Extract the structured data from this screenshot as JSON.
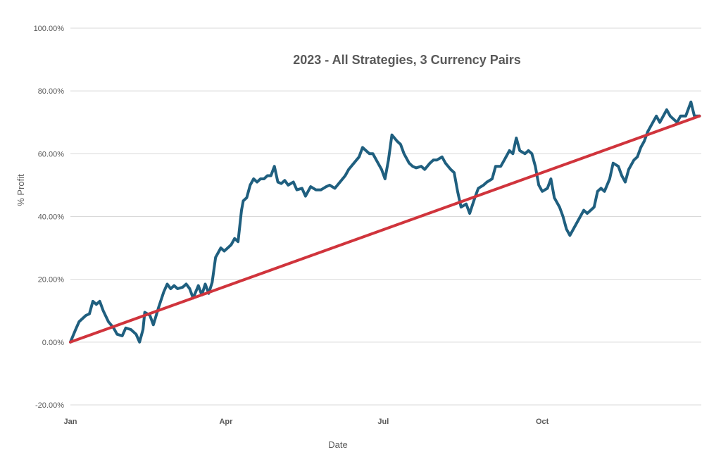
{
  "chart_data": {
    "type": "line",
    "title": "2023 - All Strategies, 3 Currency Pairs",
    "xlabel": "Date",
    "ylabel": "% Profit",
    "ylim": [
      -0.2,
      1.0
    ],
    "xlim": [
      "2023-01-01",
      "2024-01-01"
    ],
    "grid": "horizontal",
    "legend": "none",
    "y_ticks": [
      "-20.00%",
      "0.00%",
      "20.00%",
      "40.00%",
      "60.00%",
      "80.00%",
      "100.00%"
    ],
    "x_ticks": [
      {
        "label": "Jan",
        "date": "2023-01-01"
      },
      {
        "label": "Apr",
        "date": "2023-04-01"
      },
      {
        "label": "Jul",
        "date": "2023-07-01"
      },
      {
        "label": "Oct",
        "date": "2023-10-01"
      }
    ],
    "series": [
      {
        "color": "#1f5f7f",
        "points": [
          [
            "2023-01-01",
            0.0
          ],
          [
            "2023-01-04",
            0.04
          ],
          [
            "2023-01-06",
            0.065
          ],
          [
            "2023-01-10",
            0.085
          ],
          [
            "2023-01-12",
            0.09
          ],
          [
            "2023-01-14",
            0.13
          ],
          [
            "2023-01-16",
            0.12
          ],
          [
            "2023-01-18",
            0.13
          ],
          [
            "2023-01-20",
            0.1
          ],
          [
            "2023-01-23",
            0.065
          ],
          [
            "2023-01-26",
            0.045
          ],
          [
            "2023-01-28",
            0.025
          ],
          [
            "2023-01-31",
            0.02
          ],
          [
            "2023-02-02",
            0.045
          ],
          [
            "2023-02-05",
            0.04
          ],
          [
            "2023-02-08",
            0.025
          ],
          [
            "2023-02-10",
            0.0
          ],
          [
            "2023-02-12",
            0.04
          ],
          [
            "2023-02-13",
            0.095
          ],
          [
            "2023-02-16",
            0.085
          ],
          [
            "2023-02-18",
            0.055
          ],
          [
            "2023-02-21",
            0.11
          ],
          [
            "2023-02-24",
            0.16
          ],
          [
            "2023-02-26",
            0.185
          ],
          [
            "2023-02-28",
            0.17
          ],
          [
            "2023-03-02",
            0.18
          ],
          [
            "2023-03-04",
            0.17
          ],
          [
            "2023-03-07",
            0.175
          ],
          [
            "2023-03-09",
            0.185
          ],
          [
            "2023-03-11",
            0.17
          ],
          [
            "2023-03-13",
            0.14
          ],
          [
            "2023-03-16",
            0.18
          ],
          [
            "2023-03-18",
            0.15
          ],
          [
            "2023-03-20",
            0.185
          ],
          [
            "2023-03-22",
            0.155
          ],
          [
            "2023-03-24",
            0.19
          ],
          [
            "2023-03-26",
            0.27
          ],
          [
            "2023-03-29",
            0.3
          ],
          [
            "2023-03-31",
            0.29
          ],
          [
            "2023-04-02",
            0.3
          ],
          [
            "2023-04-04",
            0.31
          ],
          [
            "2023-04-06",
            0.33
          ],
          [
            "2023-04-08",
            0.32
          ],
          [
            "2023-04-10",
            0.42
          ],
          [
            "2023-04-11",
            0.45
          ],
          [
            "2023-04-13",
            0.46
          ],
          [
            "2023-04-15",
            0.5
          ],
          [
            "2023-04-17",
            0.52
          ],
          [
            "2023-04-19",
            0.51
          ],
          [
            "2023-04-21",
            0.52
          ],
          [
            "2023-04-23",
            0.52
          ],
          [
            "2023-04-25",
            0.53
          ],
          [
            "2023-04-27",
            0.53
          ],
          [
            "2023-04-29",
            0.56
          ],
          [
            "2023-05-01",
            0.51
          ],
          [
            "2023-05-03",
            0.505
          ],
          [
            "2023-05-05",
            0.515
          ],
          [
            "2023-05-07",
            0.5
          ],
          [
            "2023-05-10",
            0.51
          ],
          [
            "2023-05-12",
            0.485
          ],
          [
            "2023-05-15",
            0.49
          ],
          [
            "2023-05-17",
            0.465
          ],
          [
            "2023-05-20",
            0.495
          ],
          [
            "2023-05-23",
            0.485
          ],
          [
            "2023-05-26",
            0.485
          ],
          [
            "2023-05-29",
            0.495
          ],
          [
            "2023-05-31",
            0.5
          ],
          [
            "2023-06-03",
            0.49
          ],
          [
            "2023-06-06",
            0.51
          ],
          [
            "2023-06-09",
            0.53
          ],
          [
            "2023-06-11",
            0.55
          ],
          [
            "2023-06-14",
            0.57
          ],
          [
            "2023-06-17",
            0.59
          ],
          [
            "2023-06-19",
            0.62
          ],
          [
            "2023-06-21",
            0.61
          ],
          [
            "2023-06-23",
            0.6
          ],
          [
            "2023-06-25",
            0.6
          ],
          [
            "2023-06-27",
            0.58
          ],
          [
            "2023-06-30",
            0.55
          ],
          [
            "2023-07-02",
            0.52
          ],
          [
            "2023-07-04",
            0.58
          ],
          [
            "2023-07-06",
            0.66
          ],
          [
            "2023-07-09",
            0.64
          ],
          [
            "2023-07-11",
            0.63
          ],
          [
            "2023-07-13",
            0.6
          ],
          [
            "2023-07-16",
            0.57
          ],
          [
            "2023-07-18",
            0.56
          ],
          [
            "2023-07-20",
            0.555
          ],
          [
            "2023-07-23",
            0.56
          ],
          [
            "2023-07-25",
            0.55
          ],
          [
            "2023-07-28",
            0.57
          ],
          [
            "2023-07-30",
            0.58
          ],
          [
            "2023-08-01",
            0.58
          ],
          [
            "2023-08-04",
            0.59
          ],
          [
            "2023-08-06",
            0.57
          ],
          [
            "2023-08-09",
            0.55
          ],
          [
            "2023-08-11",
            0.54
          ],
          [
            "2023-08-13",
            0.48
          ],
          [
            "2023-08-15",
            0.43
          ],
          [
            "2023-08-18",
            0.44
          ],
          [
            "2023-08-20",
            0.41
          ],
          [
            "2023-08-23",
            0.46
          ],
          [
            "2023-08-25",
            0.49
          ],
          [
            "2023-08-28",
            0.5
          ],
          [
            "2023-08-30",
            0.51
          ],
          [
            "2023-09-02",
            0.52
          ],
          [
            "2023-09-04",
            0.56
          ],
          [
            "2023-09-07",
            0.56
          ],
          [
            "2023-09-09",
            0.58
          ],
          [
            "2023-09-12",
            0.61
          ],
          [
            "2023-09-14",
            0.6
          ],
          [
            "2023-09-16",
            0.65
          ],
          [
            "2023-09-18",
            0.61
          ],
          [
            "2023-09-21",
            0.6
          ],
          [
            "2023-09-23",
            0.61
          ],
          [
            "2023-09-25",
            0.6
          ],
          [
            "2023-09-27",
            0.56
          ],
          [
            "2023-09-29",
            0.5
          ],
          [
            "2023-10-01",
            0.48
          ],
          [
            "2023-10-04",
            0.49
          ],
          [
            "2023-10-06",
            0.52
          ],
          [
            "2023-10-08",
            0.46
          ],
          [
            "2023-10-11",
            0.43
          ],
          [
            "2023-10-13",
            0.4
          ],
          [
            "2023-10-15",
            0.36
          ],
          [
            "2023-10-17",
            0.34
          ],
          [
            "2023-10-20",
            0.37
          ],
          [
            "2023-10-22",
            0.39
          ],
          [
            "2023-10-25",
            0.42
          ],
          [
            "2023-10-27",
            0.41
          ],
          [
            "2023-10-29",
            0.42
          ],
          [
            "2023-10-31",
            0.43
          ],
          [
            "2023-11-02",
            0.48
          ],
          [
            "2023-11-04",
            0.49
          ],
          [
            "2023-11-06",
            0.48
          ],
          [
            "2023-11-09",
            0.52
          ],
          [
            "2023-11-11",
            0.57
          ],
          [
            "2023-11-14",
            0.56
          ],
          [
            "2023-11-16",
            0.53
          ],
          [
            "2023-11-18",
            0.51
          ],
          [
            "2023-11-20",
            0.55
          ],
          [
            "2023-11-23",
            0.58
          ],
          [
            "2023-11-25",
            0.59
          ],
          [
            "2023-11-27",
            0.62
          ],
          [
            "2023-11-29",
            0.64
          ],
          [
            "2023-12-01",
            0.67
          ],
          [
            "2023-12-03",
            0.69
          ],
          [
            "2023-12-06",
            0.72
          ],
          [
            "2023-12-08",
            0.7
          ],
          [
            "2023-12-10",
            0.72
          ],
          [
            "2023-12-12",
            0.74
          ],
          [
            "2023-12-14",
            0.72
          ],
          [
            "2023-12-16",
            0.71
          ],
          [
            "2023-12-18",
            0.7
          ],
          [
            "2023-12-20",
            0.72
          ],
          [
            "2023-12-23",
            0.72
          ],
          [
            "2023-12-26",
            0.765
          ],
          [
            "2023-12-28",
            0.72
          ],
          [
            "2023-12-31",
            0.72
          ]
        ]
      },
      {
        "color": "#d0343c",
        "points": [
          [
            "2023-01-01",
            0.0
          ],
          [
            "2023-12-31",
            0.72
          ]
        ]
      }
    ]
  }
}
